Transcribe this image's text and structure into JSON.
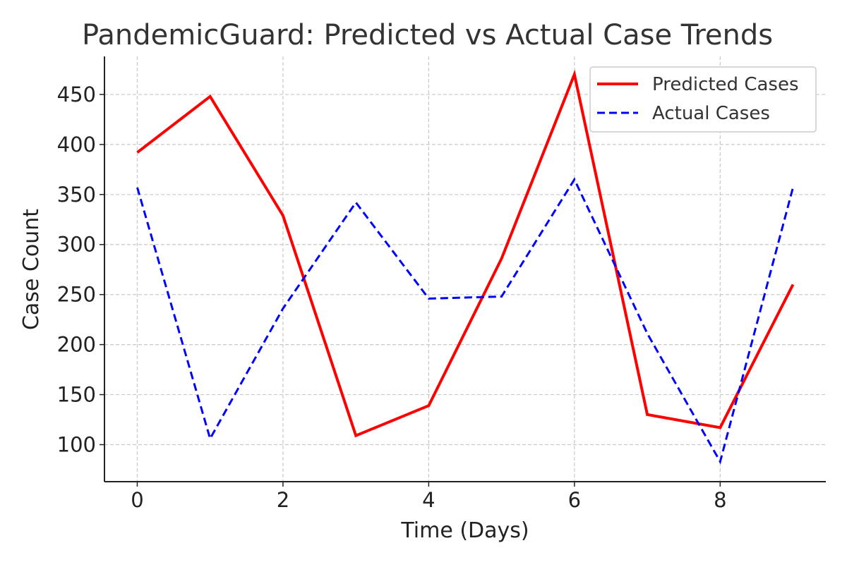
{
  "chart_data": {
    "type": "line",
    "title": "PandemicGuard: Predicted vs Actual Case Trends",
    "xlabel": "Time (Days)",
    "ylabel": "Case Count",
    "x": [
      0,
      1,
      2,
      3,
      4,
      5,
      6,
      7,
      8,
      9
    ],
    "xlim": [
      -0.45,
      9.45
    ],
    "ylim": [
      63,
      488
    ],
    "xticks": [
      0,
      2,
      4,
      6,
      8
    ],
    "yticks": [
      100,
      150,
      200,
      250,
      300,
      350,
      400,
      450
    ],
    "grid": true,
    "legend_position": "top-right",
    "series": [
      {
        "name": "Predicted Cases",
        "color": "#ff0000",
        "style": "solid",
        "values": [
          392,
          448,
          329,
          109,
          139,
          286,
          470,
          130,
          117,
          260
        ]
      },
      {
        "name": "Actual Cases",
        "color": "#0000ff",
        "style": "dashed",
        "values": [
          357,
          106,
          236,
          342,
          246,
          248,
          365,
          211,
          83,
          357
        ]
      }
    ]
  }
}
